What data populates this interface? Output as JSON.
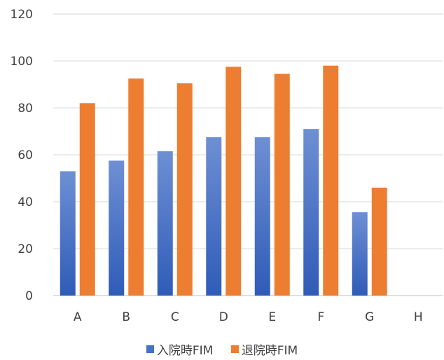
{
  "chart_data": {
    "type": "bar",
    "categories": [
      "A",
      "B",
      "C",
      "D",
      "E",
      "F",
      "G",
      "H"
    ],
    "series": [
      {
        "name": "入院時FIM",
        "values": [
          53,
          57.5,
          61.5,
          67.5,
          67.5,
          71,
          35.5,
          null
        ],
        "color": "#4472c4"
      },
      {
        "name": "退院時FIM",
        "values": [
          82,
          92.5,
          90.5,
          97.5,
          94.5,
          98,
          46,
          null
        ],
        "color": "#ed7d31"
      }
    ],
    "ylim": [
      0,
      120
    ],
    "yticks": [
      0,
      20,
      40,
      60,
      80,
      100,
      120
    ],
    "grid": true,
    "legend_position": "bottom"
  }
}
